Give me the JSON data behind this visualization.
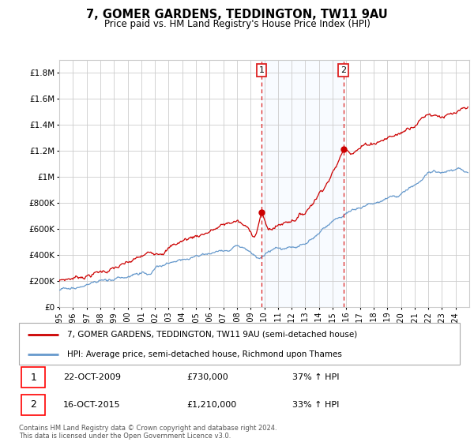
{
  "title": "7, GOMER GARDENS, TEDDINGTON, TW11 9AU",
  "subtitle": "Price paid vs. HM Land Registry's House Price Index (HPI)",
  "red_label": "7, GOMER GARDENS, TEDDINGTON, TW11 9AU (semi-detached house)",
  "blue_label": "HPI: Average price, semi-detached house, Richmond upon Thames",
  "transaction1_date": "22-OCT-2009",
  "transaction1_price": "£730,000",
  "transaction1_hpi": "37% ↑ HPI",
  "transaction1_year": 2009.8,
  "transaction1_value": 730000,
  "transaction2_date": "16-OCT-2015",
  "transaction2_price": "£1,210,000",
  "transaction2_hpi": "33% ↑ HPI",
  "transaction2_year": 2015.8,
  "transaction2_value": 1210000,
  "footer": "Contains HM Land Registry data © Crown copyright and database right 2024.\nThis data is licensed under the Open Government Licence v3.0.",
  "ylim": [
    0,
    1900000
  ],
  "xlim_start": 1995,
  "xlim_end": 2025,
  "red_color": "#cc0000",
  "blue_color": "#6699cc",
  "vline_color": "#dd2222",
  "shaded_color": "#ddeeff",
  "grid_color": "#cccccc",
  "yticks": [
    0,
    200000,
    400000,
    600000,
    800000,
    1000000,
    1200000,
    1400000,
    1600000,
    1800000
  ],
  "yticklabels": [
    "£0",
    "£200K",
    "£400K",
    "£600K",
    "£800K",
    "£1M",
    "£1.2M",
    "£1.4M",
    "£1.6M",
    "£1.8M"
  ]
}
